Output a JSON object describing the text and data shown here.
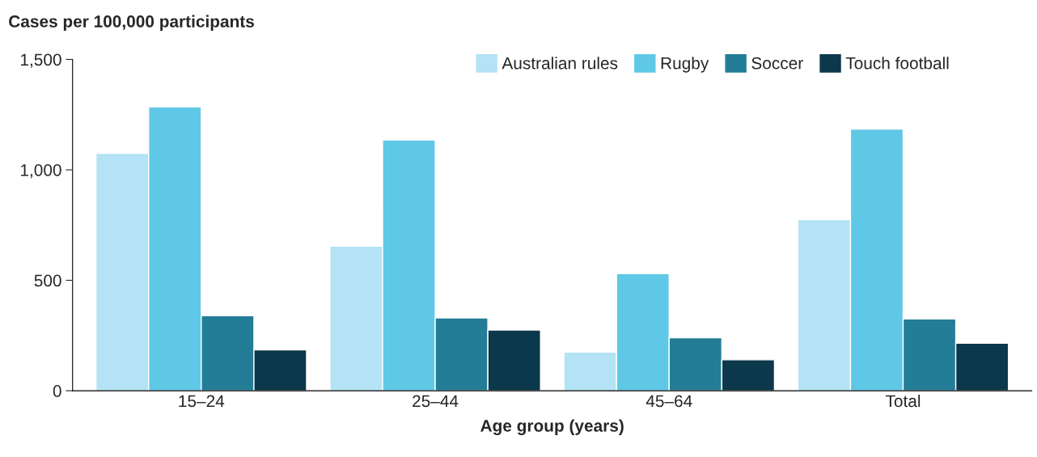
{
  "chart_data": {
    "type": "bar",
    "ylabel": "Cases per 100,000 participants",
    "xlabel": "Age group (years)",
    "categories": [
      "15–24",
      "25–44",
      "45–64",
      "Total"
    ],
    "series": [
      {
        "name": "Australian rules",
        "color": "#b3e3f5",
        "values": [
          1075,
          655,
          175,
          775
        ]
      },
      {
        "name": "Rugby",
        "color": "#5fc8e6",
        "values": [
          1285,
          1135,
          530,
          1185
        ]
      },
      {
        "name": "Soccer",
        "color": "#237d96",
        "values": [
          340,
          330,
          240,
          325
        ]
      },
      {
        "name": "Touch football",
        "color": "#0b384a",
        "values": [
          185,
          275,
          140,
          215
        ]
      }
    ],
    "ylim": [
      0,
      1500
    ],
    "yticks": [
      0,
      {
        "value": 500,
        "label": "500"
      },
      {
        "value": 1000,
        "label": "1,000"
      },
      {
        "value": 1500,
        "label": "1,500"
      }
    ],
    "grid": false,
    "legend": "top right"
  }
}
